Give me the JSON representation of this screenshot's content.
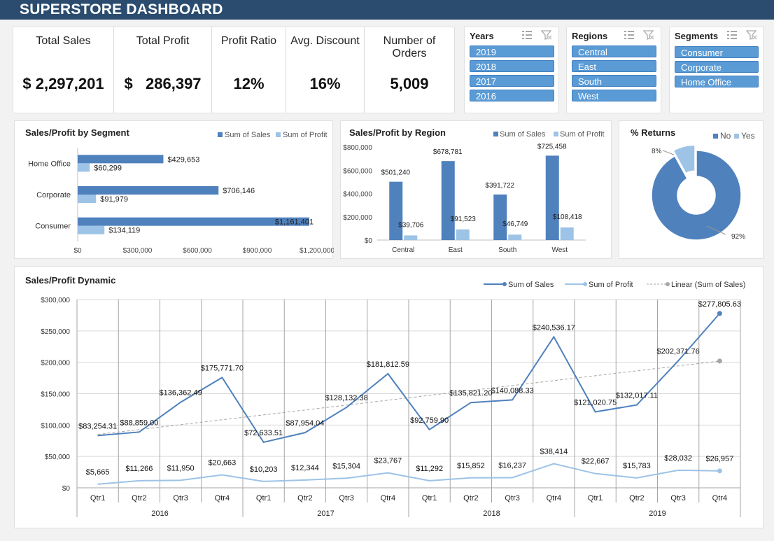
{
  "header": {
    "title": "SUPERSTORE DASHBOARD"
  },
  "kpis": [
    {
      "label": "Total Sales",
      "value": "$ 2,297,201"
    },
    {
      "label": "Total Profit",
      "value": "$   286,397"
    },
    {
      "label": "Profit Ratio",
      "value": "12%"
    },
    {
      "label": "Avg. Discount",
      "value": "16%"
    },
    {
      "label": "Number of Orders",
      "value": "5,009"
    }
  ],
  "slicers": [
    {
      "title": "Years",
      "items": [
        "2019",
        "2018",
        "2017",
        "2016"
      ]
    },
    {
      "title": "Regions",
      "items": [
        "Central",
        "East",
        "South",
        "West"
      ]
    },
    {
      "title": "Segments",
      "items": [
        "Consumer",
        "Corporate",
        "Home Office"
      ]
    }
  ],
  "colors": {
    "sales": "#4f81bd",
    "profit": "#9dc3e6",
    "trend": "#a6a6a6",
    "header": "#2b4c6f",
    "slicer": "#5b9bd5"
  },
  "chart_data": [
    {
      "type": "bar",
      "orientation": "horizontal",
      "title": "Sales/Profit by Segment",
      "categories": [
        "Home Office",
        "Corporate",
        "Consumer"
      ],
      "series": [
        {
          "name": "Sum of Sales",
          "values": [
            429653,
            706146,
            1161401
          ],
          "labels": [
            "$429,653",
            "$706,146",
            "$1,161,401"
          ]
        },
        {
          "name": "Sum of Profit",
          "values": [
            60299,
            91979,
            134119
          ],
          "labels": [
            "$60,299",
            "$91,979",
            "$134,119"
          ]
        }
      ],
      "xlim": [
        0,
        1200000
      ],
      "ticks": [
        0,
        300000,
        600000,
        900000,
        1200000
      ],
      "tick_labels": [
        "$0",
        "$300,000",
        "$600,000",
        "$900,000",
        "$1,200,000"
      ],
      "legend": "top-right"
    },
    {
      "type": "bar",
      "title": "Sales/Profit by Region",
      "categories": [
        "Central",
        "East",
        "South",
        "West"
      ],
      "series": [
        {
          "name": "Sum of Sales",
          "values": [
            501240,
            678781,
            391722,
            725458
          ],
          "labels": [
            "$501,240",
            "$678,781",
            "$391,722",
            "$725,458"
          ]
        },
        {
          "name": "Sum of Profit",
          "values": [
            39706,
            91523,
            46749,
            108418
          ],
          "labels": [
            "$39,706",
            "$91,523",
            "$46,749",
            "$108,418"
          ]
        }
      ],
      "ylim": [
        0,
        800000
      ],
      "ticks": [
        0,
        200000,
        400000,
        600000,
        800000
      ],
      "tick_labels": [
        "$0",
        "$200,000",
        "$400,000",
        "$600,000",
        "$800,000"
      ],
      "legend": "top-right"
    },
    {
      "type": "pie",
      "donut": true,
      "title": "% Returns",
      "categories": [
        "No",
        "Yes"
      ],
      "values": [
        92,
        8
      ],
      "labels": [
        "92%",
        "8%"
      ],
      "legend": "top-right"
    },
    {
      "type": "line",
      "title": "Sales/Profit Dynamic",
      "quarters": [
        "Qtr1",
        "Qtr2",
        "Qtr3",
        "Qtr4",
        "Qtr1",
        "Qtr2",
        "Qtr3",
        "Qtr4",
        "Qtr1",
        "Qtr2",
        "Qtr3",
        "Qtr4",
        "Qtr1",
        "Qtr2",
        "Qtr3",
        "Qtr4"
      ],
      "years": [
        "2016",
        "2017",
        "2018",
        "2019"
      ],
      "series": [
        {
          "name": "Sum of Sales",
          "values": [
            83254.31,
            88859.0,
            136362.49,
            175771.7,
            72633.51,
            87954.04,
            128132.38,
            181812.59,
            92759.9,
            135821.2,
            140088.33,
            240536.17,
            121020.75,
            132017.11,
            202371.76,
            277805.63
          ],
          "labels": [
            "$83,254.31",
            "$88,859.00",
            "$136,362.49",
            "$175,771.70",
            "$72,633.51",
            "$87,954.04",
            "$128,132.38",
            "$181,812.59",
            "$92,759.90",
            "$135,821.20",
            "$140,088.33",
            "$240,536.17",
            "$121,020.75",
            "$132,017.11",
            "$202,371.76",
            "$277,805.63"
          ]
        },
        {
          "name": "Sum of Profit",
          "values": [
            5665,
            11266,
            11950,
            20663,
            10203,
            12344,
            15304,
            23767,
            11292,
            15852,
            16237,
            38414,
            22667,
            15783,
            28032,
            26957
          ],
          "labels": [
            "$5,665",
            "$11,266",
            "$11,950",
            "$20,663",
            "$10,203",
            "$12,344",
            "$15,304",
            "$23,767",
            "$11,292",
            "$15,852",
            "$16,237",
            "$38,414",
            "$22,667",
            "$15,783",
            "$28,032",
            "$26,957"
          ]
        },
        {
          "name": "Linear (Sum of Sales)",
          "trend": [
            85000,
            202000
          ]
        }
      ],
      "ylim": [
        0,
        300000
      ],
      "ticks": [
        0,
        50000,
        100000,
        150000,
        200000,
        250000,
        300000
      ],
      "tick_labels": [
        "$0",
        "$50,000",
        "$100,000",
        "$150,000",
        "$200,000",
        "$250,000",
        "$300,000"
      ],
      "grid": true,
      "legend": "top-right"
    }
  ]
}
